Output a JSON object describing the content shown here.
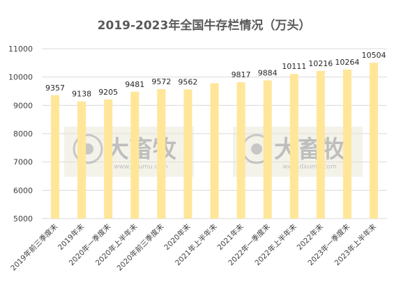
{
  "chart_data": {
    "type": "bar",
    "title": "2019-2023年全国牛存栏情况（万头）",
    "categories": [
      "2019年前三季度末",
      "2019年末",
      "2020年一季度末",
      "2020年上半年末",
      "2020年前三季度末",
      "2020年末",
      "2021年上半年末",
      "2021年末",
      "2022年一季度末",
      "2022年上半年末",
      "2022年末",
      "2023年一季度末",
      "2023年上半年末"
    ],
    "values": [
      9357,
      9138,
      9205,
      9481,
      9572,
      9562,
      9779,
      9817,
      9884,
      10111,
      10216,
      10264,
      10504
    ],
    "data_labels": [
      "9357",
      "9138",
      "9205",
      "9481",
      "9572",
      "9562",
      "",
      "9817",
      "9884",
      "10111",
      "10216",
      "10264",
      "10504"
    ],
    "ylim": [
      5000,
      11000
    ],
    "yticks": [
      5000,
      6000,
      7000,
      8000,
      9000,
      10000,
      11000
    ],
    "grid": true,
    "legend": "none",
    "bar_color": "#FFE699",
    "grid_color": "#d9d9d9"
  },
  "watermark": {
    "text": "大畜牧",
    "subtext": "www.dxumu.com",
    "copies": 2
  }
}
